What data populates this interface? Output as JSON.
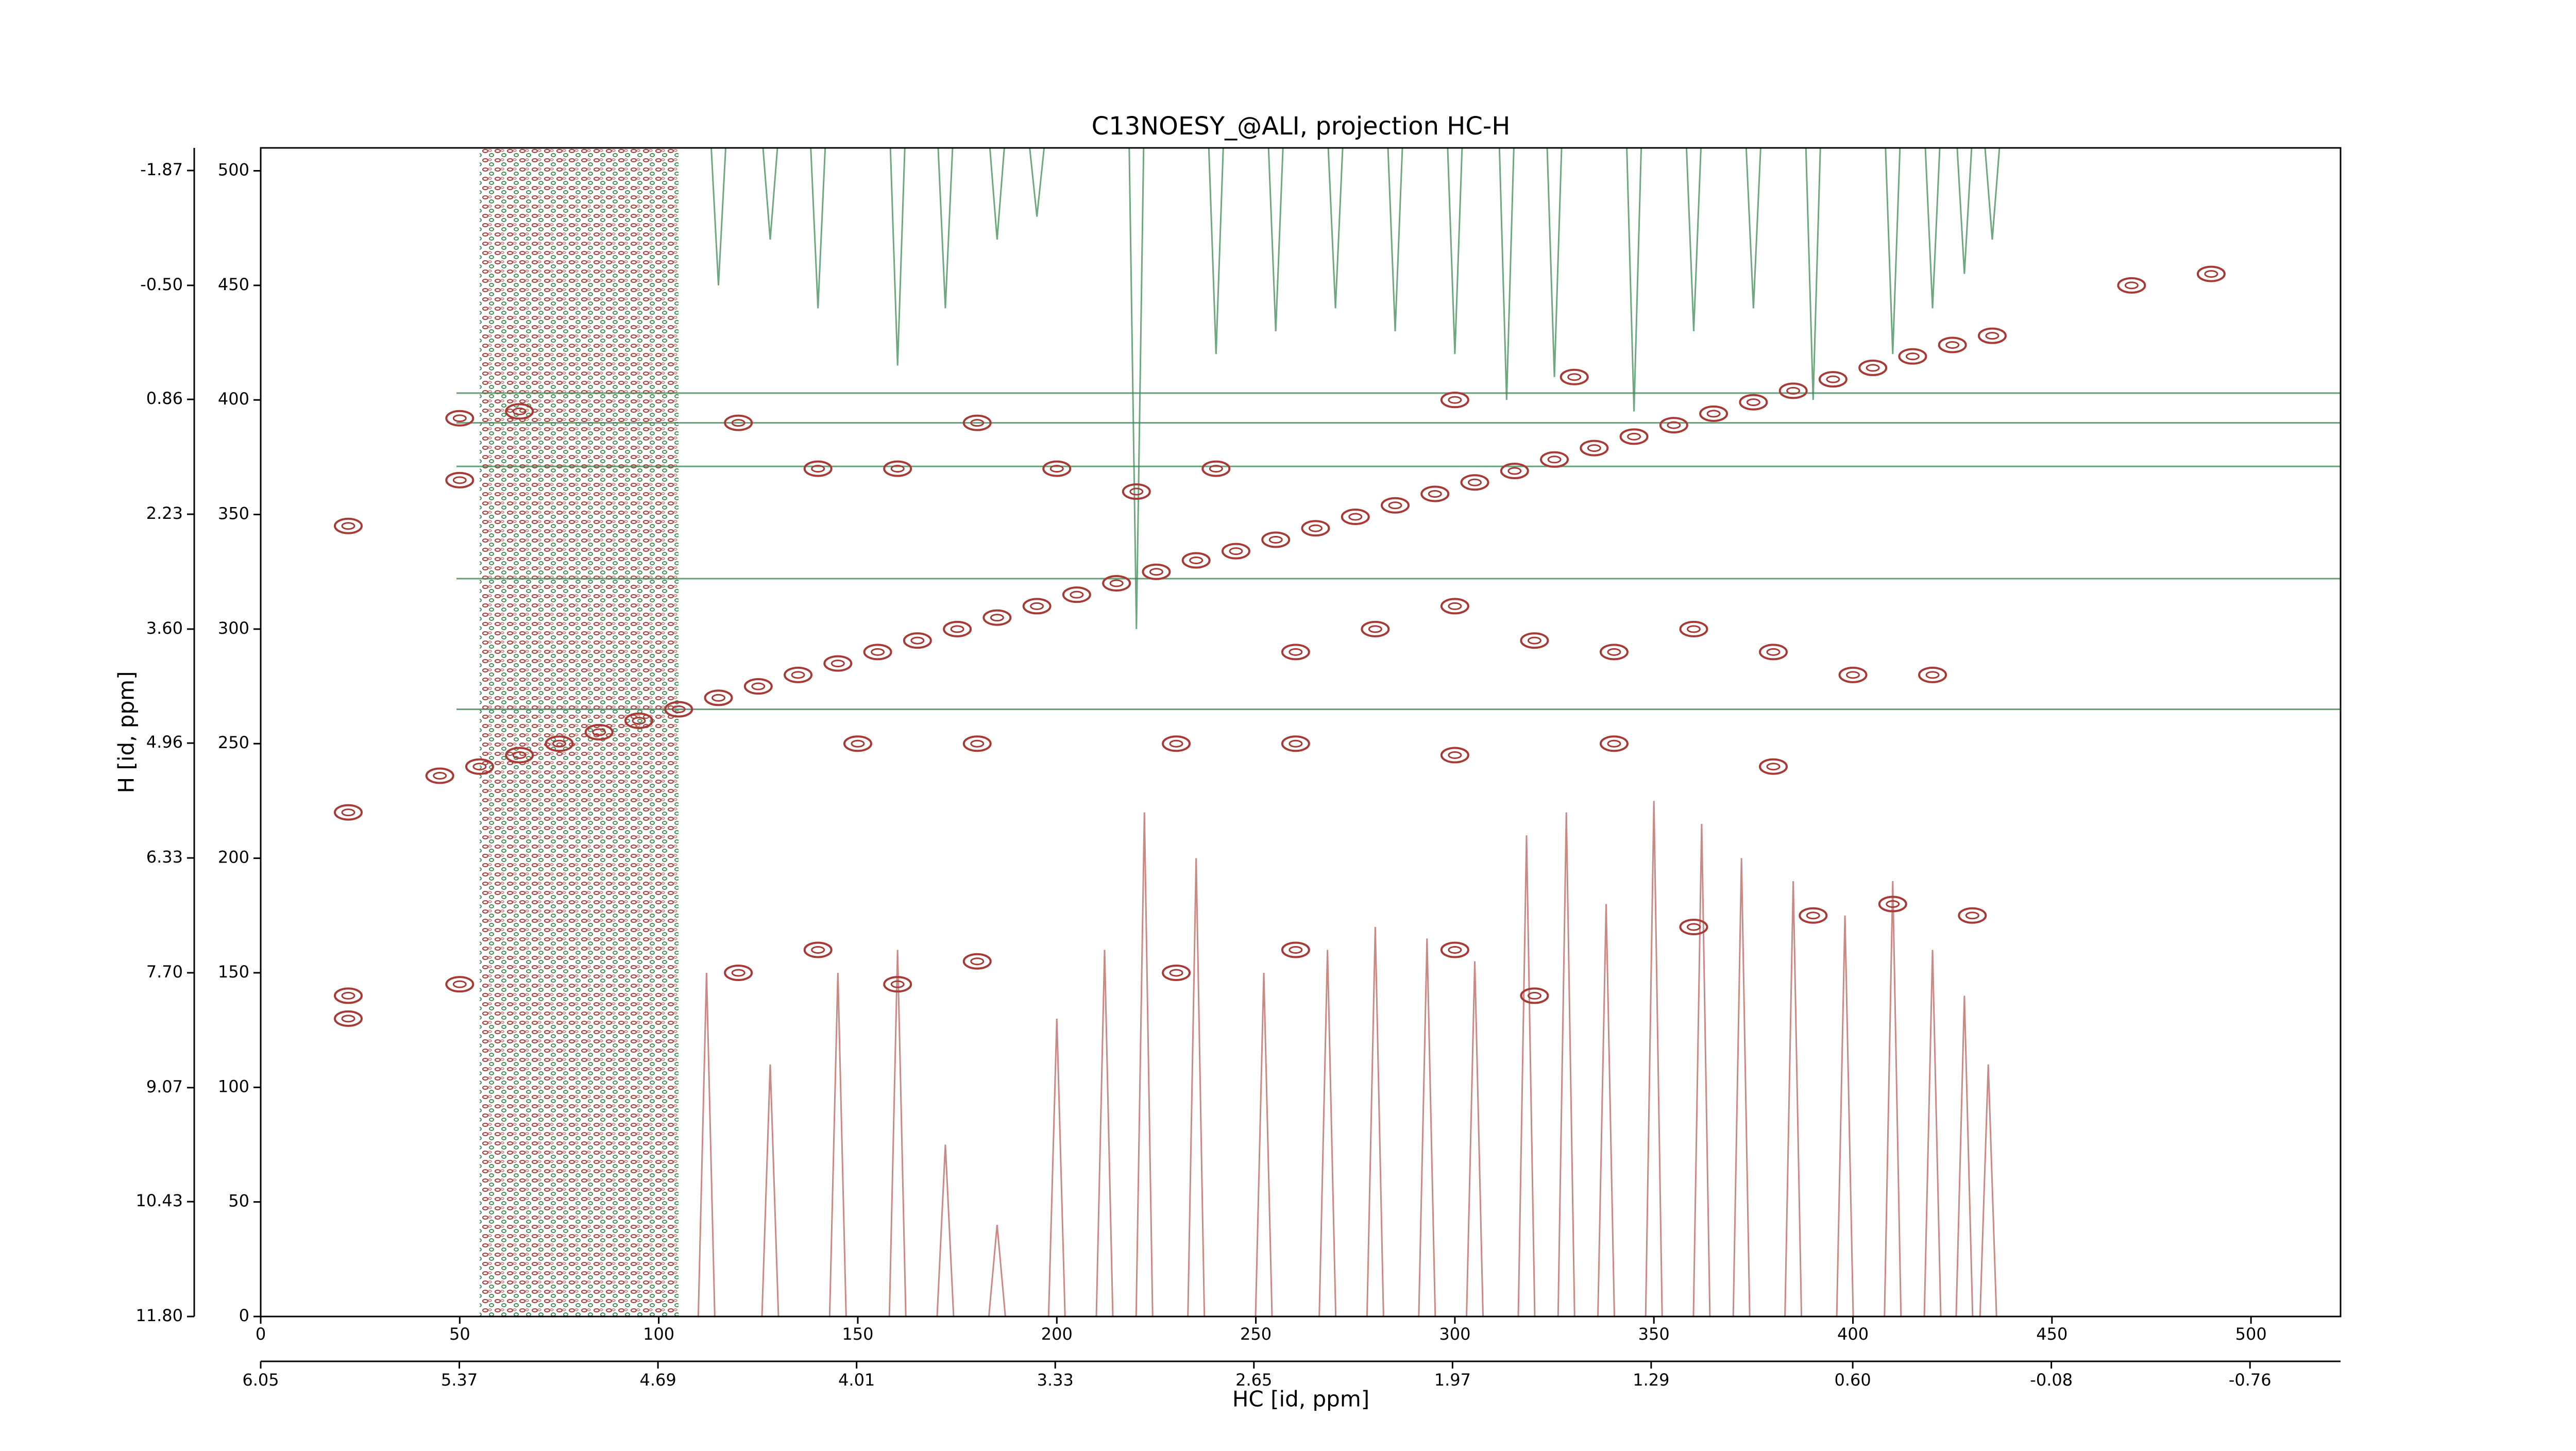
{
  "chart_data": {
    "type": "contour",
    "title": "C13NOESY_@ALI, projection HC-H",
    "x_label": "HC [id, ppm]",
    "y_label": "H [id, ppm]",
    "xlim": [
      0,
      522.5
    ],
    "xticks": [
      0,
      50,
      100,
      150,
      200,
      250,
      300,
      350,
      400,
      450,
      500
    ],
    "ylim": [
      0,
      510
    ],
    "yticks": [
      0,
      50,
      100,
      150,
      200,
      250,
      300,
      350,
      400,
      450,
      500
    ],
    "x2lim": [
      6.05,
      -1.07
    ],
    "x2ticks": [
      6.05,
      5.37,
      4.69,
      4.01,
      3.33,
      2.65,
      1.97,
      1.29,
      {
        "value": 0.6,
        "label": "0.60"
      },
      -0.08,
      -0.76
    ],
    "y2lim": [
      11.8,
      -2.14
    ],
    "y2ticks": [
      {
        "value": 11.8,
        "label": "11.80"
      },
      10.43,
      9.07,
      {
        "value": 7.7,
        "label": "7.70"
      },
      6.33,
      4.96,
      {
        "value": 3.6,
        "label": "3.60"
      },
      2.23,
      0.86,
      {
        "value": -0.5,
        "label": "-0.50"
      },
      -1.87
    ],
    "positive_color": "#a83a35",
    "negative_color": "#3d8a55",
    "positive_peaks": {
      "x": [
        45,
        55,
        65,
        75,
        85,
        95,
        105,
        115,
        125,
        135,
        145,
        155,
        165,
        175,
        185,
        195,
        205,
        215,
        225,
        235,
        245,
        255,
        265,
        275,
        285,
        295,
        305,
        315,
        325,
        335,
        345,
        355,
        365,
        375,
        385,
        395,
        405,
        415,
        425,
        435,
        22,
        22,
        22,
        22,
        50,
        50,
        50,
        65,
        120,
        140,
        160,
        180,
        200,
        220,
        240,
        260,
        280,
        300,
        320,
        340,
        360,
        380,
        400,
        420,
        150,
        180,
        230,
        260,
        300,
        340,
        380,
        120,
        140,
        160,
        180,
        230,
        260,
        300,
        320,
        360,
        390,
        410,
        430,
        470,
        490,
        300,
        330
      ],
      "y": [
        236,
        240,
        245,
        250,
        255,
        260,
        265,
        270,
        275,
        280,
        285,
        290,
        295,
        300,
        305,
        310,
        315,
        320,
        325,
        330,
        334,
        339,
        344,
        349,
        354,
        359,
        364,
        369,
        374,
        379,
        384,
        389,
        394,
        399,
        404,
        409,
        414,
        419,
        424,
        428,
        220,
        345,
        130,
        140,
        145,
        392,
        365,
        395,
        390,
        370,
        370,
        390,
        370,
        360,
        370,
        290,
        300,
        310,
        295,
        290,
        300,
        290,
        280,
        280,
        250,
        250,
        250,
        250,
        245,
        250,
        240,
        150,
        160,
        145,
        155,
        150,
        160,
        160,
        140,
        170,
        175,
        180,
        175,
        450,
        455,
        400,
        410
      ]
    },
    "positive_ridges": {
      "x": [
        112,
        128,
        145,
        160,
        172,
        185,
        200,
        212,
        222,
        235,
        252,
        268,
        280,
        293,
        305,
        318,
        328,
        338,
        350,
        362,
        372,
        385,
        398,
        410,
        420,
        428,
        434
      ],
      "y": [
        150,
        110,
        150,
        160,
        75,
        40,
        130,
        160,
        220,
        200,
        150,
        160,
        170,
        165,
        155,
        210,
        220,
        180,
        225,
        215,
        200,
        190,
        175,
        190,
        160,
        140,
        110
      ]
    },
    "negative_ridges": {
      "x": [
        115,
        128,
        140,
        160,
        172,
        185,
        195,
        220,
        240,
        255,
        270,
        285,
        300,
        313,
        325,
        345,
        360,
        375,
        390,
        410,
        420,
        428,
        435
      ],
      "y": [
        450,
        470,
        440,
        415,
        440,
        470,
        480,
        300,
        420,
        430,
        440,
        430,
        420,
        400,
        410,
        395,
        430,
        440,
        400,
        420,
        440,
        455,
        470
      ]
    },
    "negative_lines": [
      403,
      390,
      371,
      322,
      265
    ]
  }
}
